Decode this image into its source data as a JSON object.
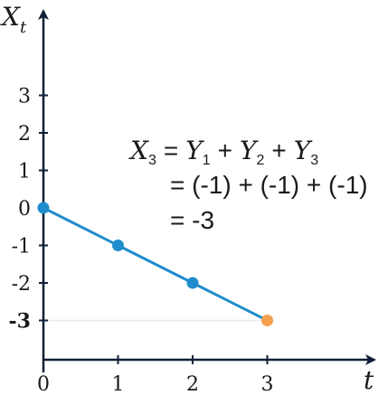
{
  "chart_data": {
    "type": "line",
    "title": "",
    "xlabel": {
      "base": "t"
    },
    "ylabel": {
      "base": "X",
      "sub": "t"
    },
    "xlim": [
      0,
      3
    ],
    "ylim": [
      -3,
      3
    ],
    "x_ticks": [
      "0",
      "1",
      "2",
      "3"
    ],
    "y_ticks": [
      "3",
      "2",
      "1",
      "0",
      "-1",
      "-2",
      "-3"
    ],
    "highlighted_y_tick": "-3",
    "reference_line_y": -3,
    "grid": false,
    "series": [
      {
        "points": [
          {
            "x": 0,
            "y": 0
          },
          {
            "x": 1,
            "y": -1
          },
          {
            "x": 2,
            "y": -2
          },
          {
            "x": 3,
            "y": -3
          }
        ],
        "line_color": "#1f8dcb",
        "point_color": "#1f8dcb",
        "highlight_last_point_color": "#f5a04f"
      }
    ],
    "annotation": {
      "line1": {
        "lhs": {
          "base": "X",
          "sub": "3"
        },
        "eq": "=",
        "terms": [
          {
            "base": "Y",
            "sub": "1"
          },
          {
            "base": "Y",
            "sub": "2"
          },
          {
            "base": "Y",
            "sub": "3"
          }
        ],
        "plus": "+"
      },
      "line2": "= (-1) + (-1) + (-1)",
      "line3": "= -3"
    },
    "colors": {
      "axis": "#0f1f36",
      "series": "#1f8dcb",
      "highlight": "#f5a04f",
      "reference_line": "#e9e9e9"
    }
  }
}
